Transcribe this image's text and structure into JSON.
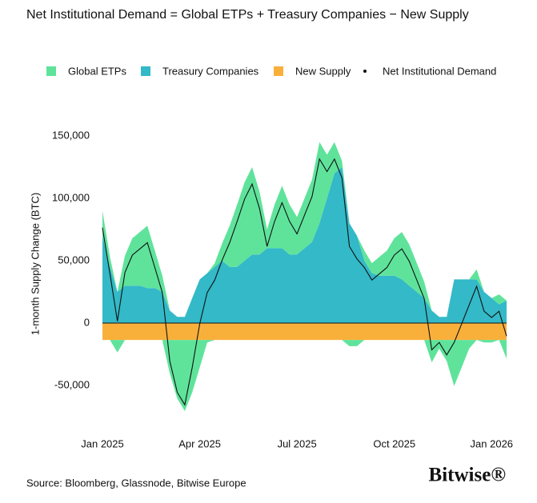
{
  "chart_data": {
    "type": "stacked-area",
    "title": "Net Institutional Demand = Global ETPs + Treasury Companies − New Supply",
    "y_label": "1-month Supply Change (BTC)",
    "source": "Source: Bloomberg, Glassnode, Bitwise Europe",
    "logo": "Bitwise®",
    "categories": [
      "Jan 2025",
      null,
      null,
      null,
      null,
      null,
      null,
      null,
      null,
      null,
      null,
      null,
      null,
      "Apr 2025",
      null,
      null,
      null,
      null,
      null,
      null,
      null,
      null,
      null,
      null,
      null,
      null,
      "Jul 2025",
      null,
      null,
      null,
      null,
      null,
      null,
      null,
      null,
      null,
      null,
      null,
      null,
      "Oct 2025",
      null,
      null,
      null,
      null,
      null,
      null,
      null,
      null,
      null,
      null,
      null,
      null,
      "Jan 2026",
      null,
      null
    ],
    "ylim": [
      -70000,
      150000
    ],
    "yticks": [
      {
        "value": -50000,
        "label": "-50,000"
      },
      0,
      {
        "value": 50000,
        "label": "50,000"
      },
      {
        "value": 100000,
        "label": "100,000"
      },
      {
        "value": 150000,
        "label": "150,000"
      }
    ],
    "series": [
      {
        "name": "Global ETPs",
        "color": "#5fe39b",
        "kind": "area",
        "stack": "top",
        "values": [
          20000,
          8000,
          -10000,
          24000,
          38000,
          43000,
          50000,
          30000,
          13000,
          -27000,
          -47000,
          -57000,
          -42000,
          -22000,
          -2000,
          3000,
          14000,
          33000,
          50000,
          63000,
          70000,
          50000,
          15000,
          35000,
          50000,
          40000,
          30000,
          40000,
          50000,
          65000,
          35000,
          25000,
          5000,
          -5000,
          -5000,
          8000,
          8000,
          15000,
          20000,
          30000,
          38000,
          33000,
          23000,
          13000,
          -18000,
          -7000,
          -17000,
          -37000,
          -22000,
          -7000,
          8000,
          -2000,
          -2000,
          8000,
          -15000
        ]
      },
      {
        "name": "Treasury Companies",
        "color": "#33b9c7",
        "kind": "area",
        "stack": "base",
        "values": [
          70000,
          45000,
          25000,
          30000,
          30000,
          30000,
          28000,
          28000,
          25000,
          10000,
          5000,
          5000,
          20000,
          35000,
          40000,
          45000,
          50000,
          45000,
          45000,
          50000,
          55000,
          55000,
          60000,
          60000,
          60000,
          55000,
          55000,
          60000,
          65000,
          80000,
          100000,
          120000,
          125000,
          80000,
          70000,
          50000,
          40000,
          38000,
          38000,
          38000,
          35000,
          30000,
          25000,
          20000,
          10000,
          5000,
          5000,
          35000,
          35000,
          35000,
          35000,
          25000,
          20000,
          15000,
          18000
        ]
      },
      {
        "name": "New Supply",
        "color": "#f9b03b",
        "kind": "area",
        "stack": "base",
        "values": [
          -13500,
          -13500,
          -13500,
          -13500,
          -13500,
          -13500,
          -13500,
          -13500,
          -13500,
          -13500,
          -13500,
          -13500,
          -13500,
          -13500,
          -13500,
          -13500,
          -13500,
          -13500,
          -13500,
          -13500,
          -13500,
          -13500,
          -13500,
          -13500,
          -13500,
          -13500,
          -13500,
          -13500,
          -13500,
          -13500,
          -13500,
          -13500,
          -13500,
          -13500,
          -13500,
          -13500,
          -13500,
          -13500,
          -13500,
          -13500,
          -13500,
          -13500,
          -13500,
          -13500,
          -13500,
          -13500,
          -13500,
          -13500,
          -13500,
          -13500,
          -13500,
          -13500,
          -13500,
          -13500,
          -13500
        ]
      },
      {
        "name": "Net Institutional Demand",
        "color": "#111111",
        "kind": "line",
        "values": [
          76500,
          39500,
          1500,
          40500,
          54500,
          59500,
          64500,
          44500,
          24500,
          -30500,
          -55500,
          -65500,
          -35500,
          -500,
          24500,
          34500,
          50500,
          64500,
          81500,
          99500,
          111500,
          91500,
          61500,
          81500,
          96500,
          81500,
          71500,
          86500,
          101500,
          131500,
          121500,
          131500,
          116500,
          61500,
          51500,
          44500,
          34500,
          39500,
          44500,
          54500,
          59500,
          49500,
          34500,
          19500,
          -21500,
          -15500,
          -25500,
          -15500,
          -500,
          14500,
          29500,
          9500,
          4500,
          9500,
          -10500
        ]
      }
    ]
  }
}
